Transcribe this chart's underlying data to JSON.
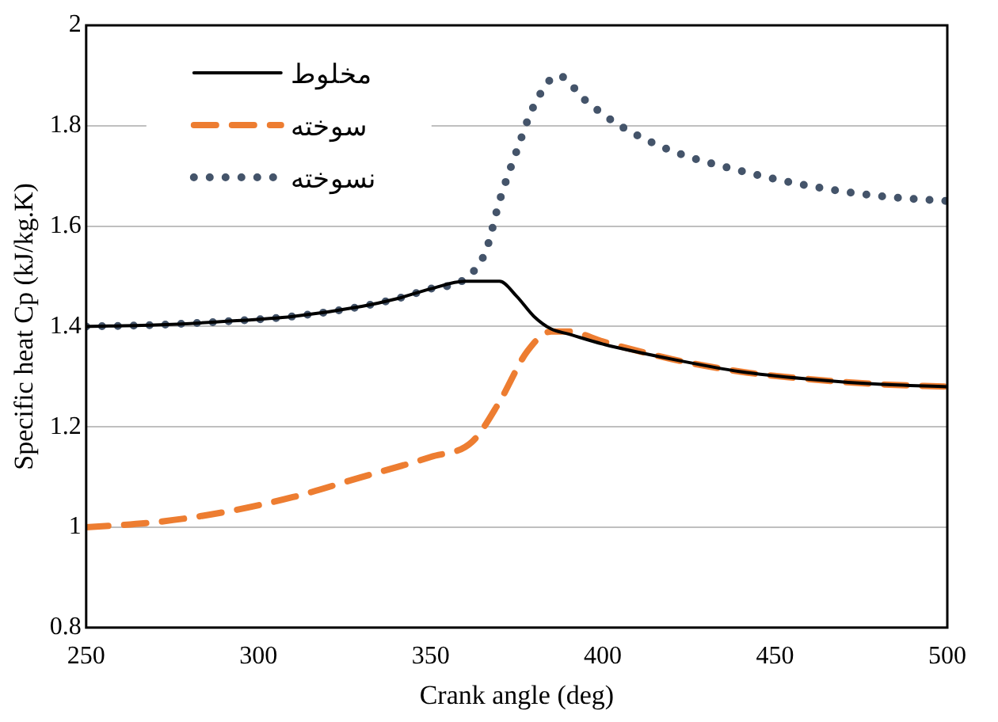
{
  "chart_data": {
    "type": "line",
    "xlabel": "Crank angle (deg)",
    "ylabel": "Specific heat Cp (kJ/kg.K)",
    "xlim": [
      250,
      500
    ],
    "xticks": [
      250,
      300,
      350,
      400,
      450,
      500
    ],
    "ylim": [
      0.8,
      2
    ],
    "yticks": [
      0.8,
      1,
      1.2,
      1.4,
      1.6,
      1.8,
      2
    ],
    "grid": "y",
    "legend": "top left",
    "marker": "none",
    "series": [
      {
        "name": "مخلوط",
        "color": "#000000",
        "line_style": "solid",
        "x": [
          250,
          270,
          290,
          310,
          330,
          340,
          350,
          360,
          370,
          375,
          380,
          385,
          390,
          400,
          420,
          440,
          460,
          480,
          500
        ],
        "values": [
          1.4,
          1.403,
          1.41,
          1.42,
          1.44,
          1.455,
          1.475,
          1.49,
          1.49,
          1.46,
          1.42,
          1.395,
          1.385,
          1.365,
          1.335,
          1.31,
          1.295,
          1.285,
          1.28
        ]
      },
      {
        "name": "سوخته",
        "color": "#ed7d31",
        "line_style": "dashed",
        "x": [
          250,
          270,
          290,
          310,
          330,
          350,
          362,
          370,
          378,
          385,
          390,
          400,
          420,
          440,
          460,
          480,
          500
        ],
        "values": [
          1.0,
          1.01,
          1.03,
          1.06,
          1.1,
          1.14,
          1.17,
          1.25,
          1.35,
          1.39,
          1.39,
          1.37,
          1.335,
          1.31,
          1.295,
          1.285,
          1.28
        ]
      },
      {
        "name": "نسوخته",
        "color": "#44546a",
        "line_style": "dotted",
        "x": [
          250,
          270,
          290,
          310,
          330,
          340,
          350,
          360,
          366,
          370,
          375,
          380,
          387,
          395,
          405,
          420,
          440,
          460,
          480,
          500
        ],
        "values": [
          1.4,
          1.403,
          1.41,
          1.42,
          1.44,
          1.455,
          1.475,
          1.495,
          1.55,
          1.65,
          1.75,
          1.84,
          1.9,
          1.85,
          1.8,
          1.75,
          1.71,
          1.68,
          1.66,
          1.65
        ]
      }
    ]
  }
}
